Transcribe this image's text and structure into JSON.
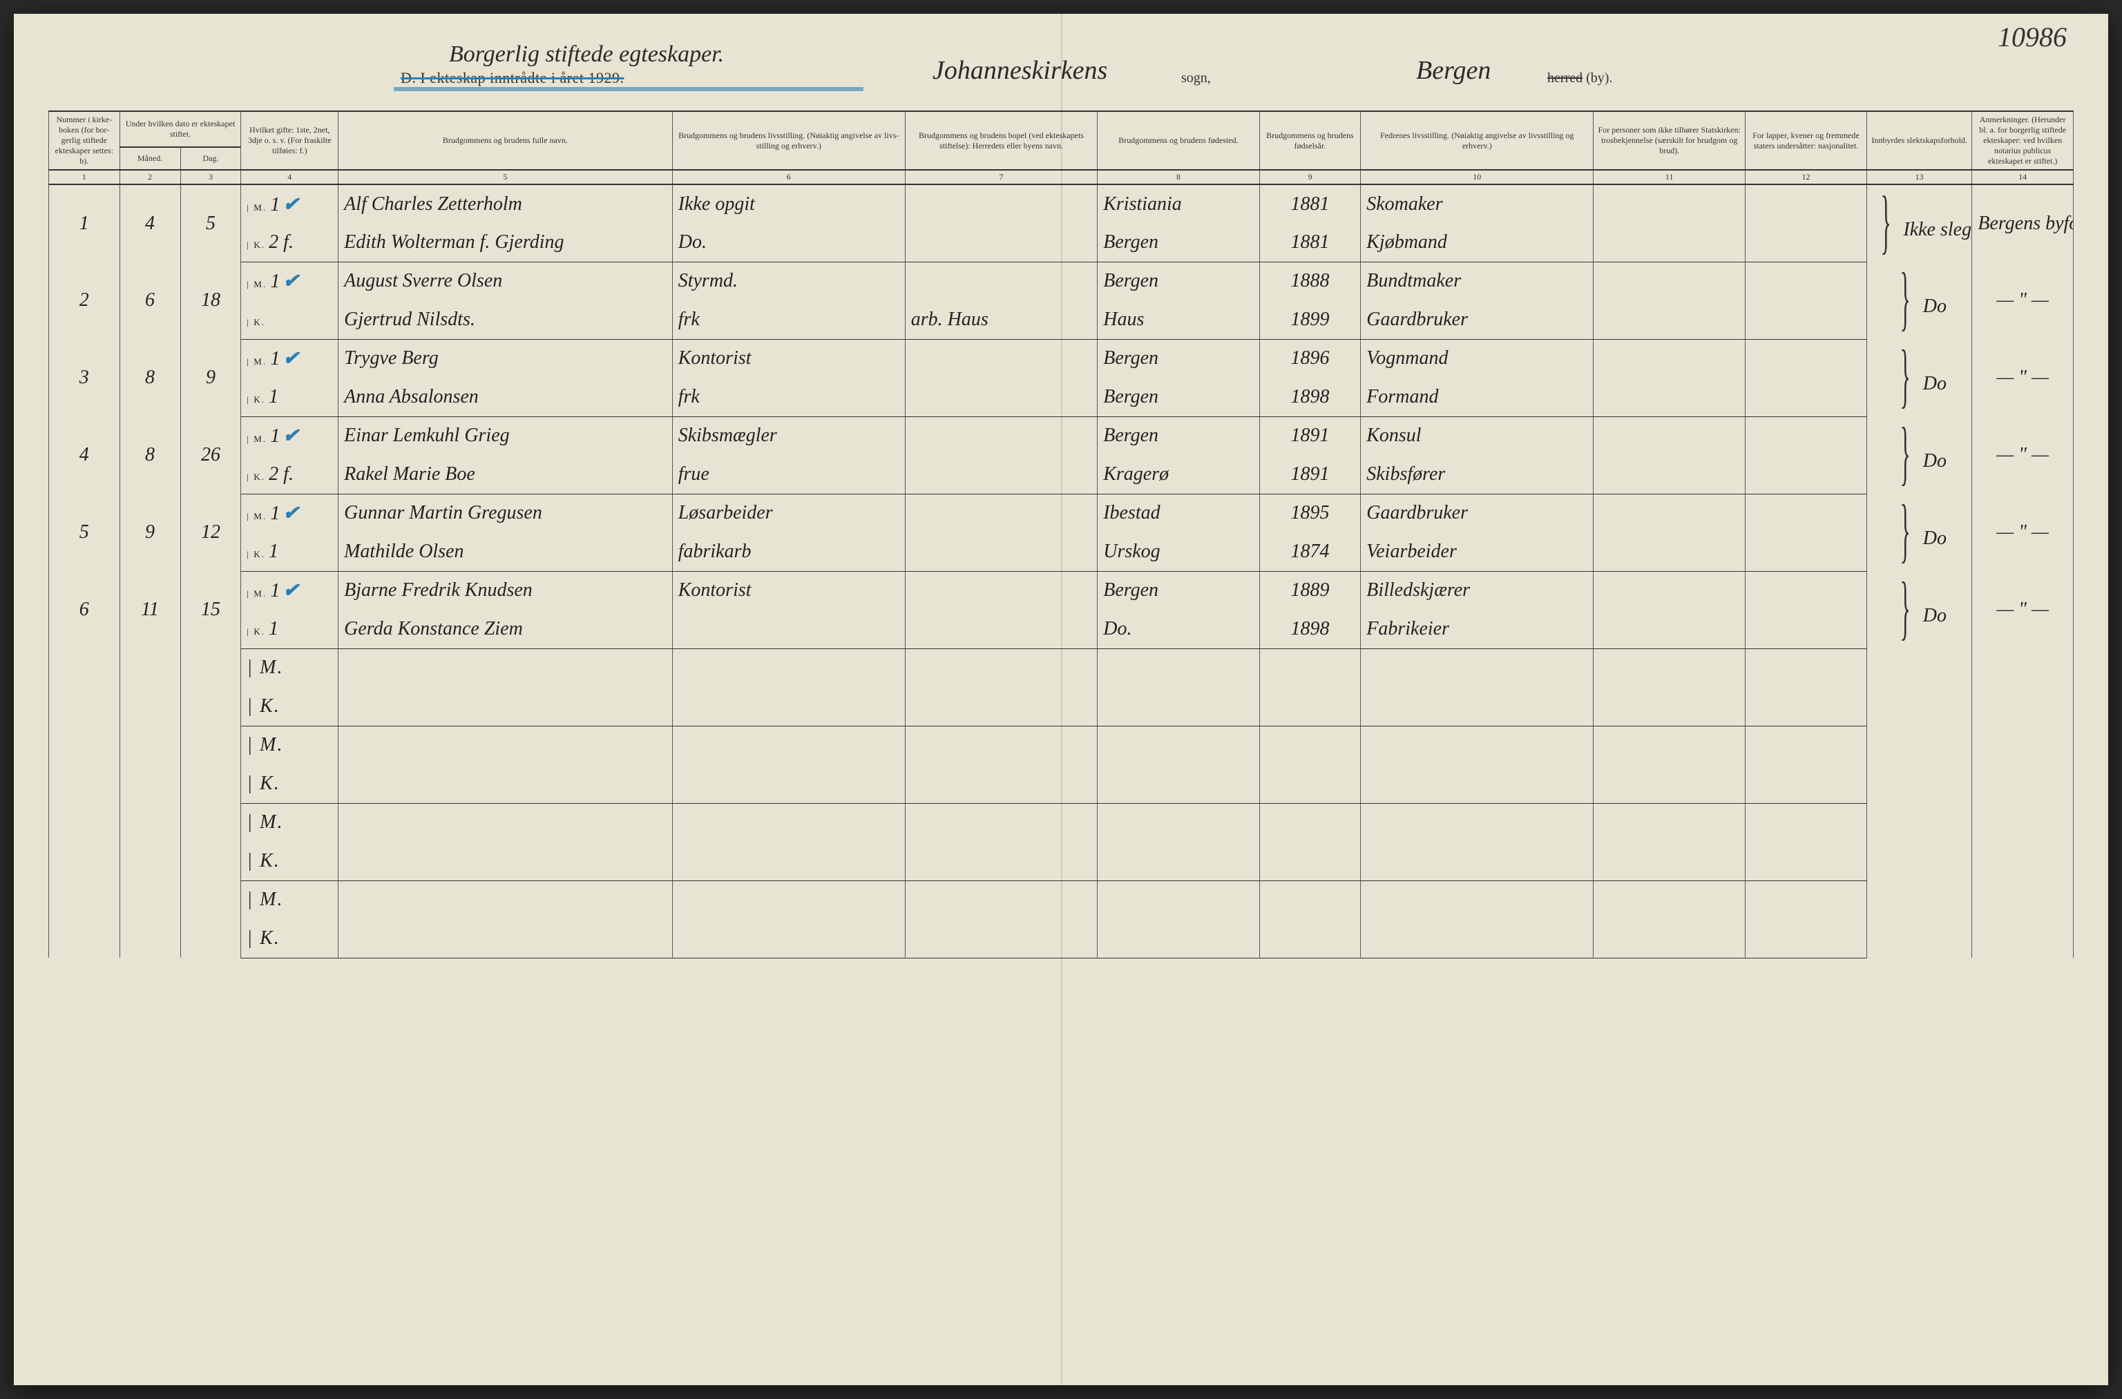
{
  "page_number": "10986",
  "header": {
    "handwritten_title": "Borgerlig stiftede egteskaper.",
    "printed_line": "D. I ekteskap inntrådte i året 1929.",
    "parish_handwritten": "Johanneskirkens",
    "sogn_label": "sogn,",
    "city_handwritten": "Bergen",
    "herred_label_a": "herred",
    "herred_label_b": " (by)."
  },
  "columns": {
    "c1": "Nummer i kirke­boken (for bor­gerlig stiftede ekte­skaper settes: b).",
    "c2": "Under hvilken dato er ekte­skapet stiftet.",
    "c2a": "Måned.",
    "c2b": "Dag.",
    "c3": "Hvilket gifte: 1ste, 2net, 3dje o. s. v. (For fraskilte tilføies: f.)",
    "c4": "Brudgommens og brudens fulle navn.",
    "c5": "Brudgommens og brudens livsstilling. (Nøiaktig angivelse av livs­stilling og erhverv.)",
    "c6": "Brudgommens og brudens bopel (ved ekteskapets stiftelse): Herredets eller byens navn.",
    "c7": "Brudgommens og brudens fødested.",
    "c8": "Brudgom­mens og brudens fødsels­år.",
    "c9": "Fedrenes livsstilling. (Nøiaktig angivelse av livsstilling og erhverv.)",
    "c10": "For personer som ikke tilhører Statskirken: trosbekjennelse (særskilt for brudgom og brud).",
    "c11": "For lapper, kvener og fremmede staters undersåtter: nasjonalitet.",
    "c12": "Innbyrdes slektskapsforhold.",
    "c13": "Anmerkninger. (Herunder bl. a. for borgerlig stiftede ekte­skaper: ved hvilken notarius publicus ekteskapet er stiftet.)"
  },
  "colnums": [
    "1",
    "2",
    "3",
    "4",
    "5",
    "6",
    "7",
    "8",
    "9",
    "10",
    "11",
    "12",
    "13",
    "14"
  ],
  "rows": [
    {
      "no": "1",
      "month": "4",
      "day": "5",
      "m": {
        "gifte": "1",
        "tick": true,
        "name": "Alf Charles Zetterholm",
        "occ": "Ikke opgit",
        "bopel": "",
        "born": "Kristiania",
        "year": "1881",
        "father": "Skomaker"
      },
      "k": {
        "gifte": "2 f.",
        "name": "Edith Wolterman f. Gjerding",
        "occ": "Do.",
        "bopel": "",
        "born": "Bergen",
        "year": "1881",
        "father": "Kjøbmand"
      },
      "c12": "Ikke slegt.",
      "c13": "Bergens byfogd"
    },
    {
      "no": "2",
      "month": "6",
      "day": "18",
      "m": {
        "gifte": "1",
        "tick": true,
        "name": "August Sverre Olsen",
        "occ": "Styrmd.",
        "bopel": "",
        "born": "Bergen",
        "year": "1888",
        "father": "Bundtmaker"
      },
      "k": {
        "gifte": "",
        "name": "Gjertrud Nilsdts.",
        "occ": "frk",
        "occ_faint": true,
        "bopel": "arb. Haus",
        "bopel_faint": true,
        "born": "Haus",
        "year": "1899",
        "father": "Gaardbruker"
      },
      "c12": "Do",
      "c13": "— \" —"
    },
    {
      "no": "3",
      "month": "8",
      "day": "9",
      "m": {
        "gifte": "1",
        "tick": true,
        "name": "Trygve Berg",
        "occ": "Kontorist",
        "bopel": "",
        "born": "Bergen",
        "year": "1896",
        "father": "Vognmand"
      },
      "k": {
        "gifte": "1",
        "name": "Anna Absalonsen",
        "occ": "frk",
        "occ_faint": true,
        "bopel": "",
        "born": "Bergen",
        "year": "1898",
        "father": "Formand"
      },
      "c12": "Do",
      "c13": "— \" —"
    },
    {
      "no": "4",
      "month": "8",
      "day": "26",
      "m": {
        "gifte": "1",
        "tick": true,
        "name": "Einar Lemkuhl Grieg",
        "occ": "Skibsmægler",
        "bopel": "",
        "born": "Bergen",
        "year": "1891",
        "father": "Konsul"
      },
      "k": {
        "gifte": "2 f.",
        "name": "Rakel Marie Boe",
        "occ": "frue",
        "occ_faint": true,
        "bopel": "",
        "born": "Kragerø",
        "year": "1891",
        "father": "Skibsfører"
      },
      "c12": "Do",
      "c13": "— \" —"
    },
    {
      "no": "5",
      "month": "9",
      "day": "12",
      "m": {
        "gifte": "1",
        "tick": true,
        "name": "Gunnar Martin Gregusen",
        "occ": "Løsarbeider",
        "bopel": "",
        "born": "Ibestad",
        "year": "1895",
        "father": "Gaardbruker"
      },
      "k": {
        "gifte": "1",
        "name": "Mathilde Olsen",
        "occ": "fabrikarb",
        "occ_faint": true,
        "bopel": "",
        "born": "Urskog",
        "year": "1874",
        "father": "Veiarbeider"
      },
      "c12": "Do",
      "c13": "— \" —"
    },
    {
      "no": "6",
      "month": "11",
      "day": "15",
      "m": {
        "gifte": "1",
        "tick": true,
        "name": "Bjarne Fredrik Knudsen",
        "occ": "Kontorist",
        "bopel": "",
        "born": "Bergen",
        "year": "1889",
        "father": "Billedskjærer"
      },
      "k": {
        "gifte": "1",
        "name": "Gerda Konstance Ziem",
        "occ": "",
        "bopel": "",
        "born": "Do.",
        "year": "1898",
        "father": "Fabrikeier"
      },
      "c12": "Do",
      "c13": "— \" —"
    }
  ],
  "empty_rows": 4,
  "style": {
    "page_bg": "#e8e4d4",
    "ink": "#222222",
    "print": "#333333",
    "rule": "#555555",
    "rule_heavy": "#333333",
    "blue_pencil": "#2b7fb5",
    "faint_pencil": "#9a9380",
    "script_font": "Brush Script MT, cursive",
    "print_font": "Georgia, Times New Roman, serif",
    "header_font_size_pt": 12,
    "body_script_size_pt": 28,
    "col_widths_pct": [
      3.5,
      3.0,
      3.0,
      4.8,
      16.5,
      11.5,
      9.5,
      8.0,
      5.0,
      11.5,
      7.5,
      6.0,
      5.2,
      5.0
    ]
  }
}
